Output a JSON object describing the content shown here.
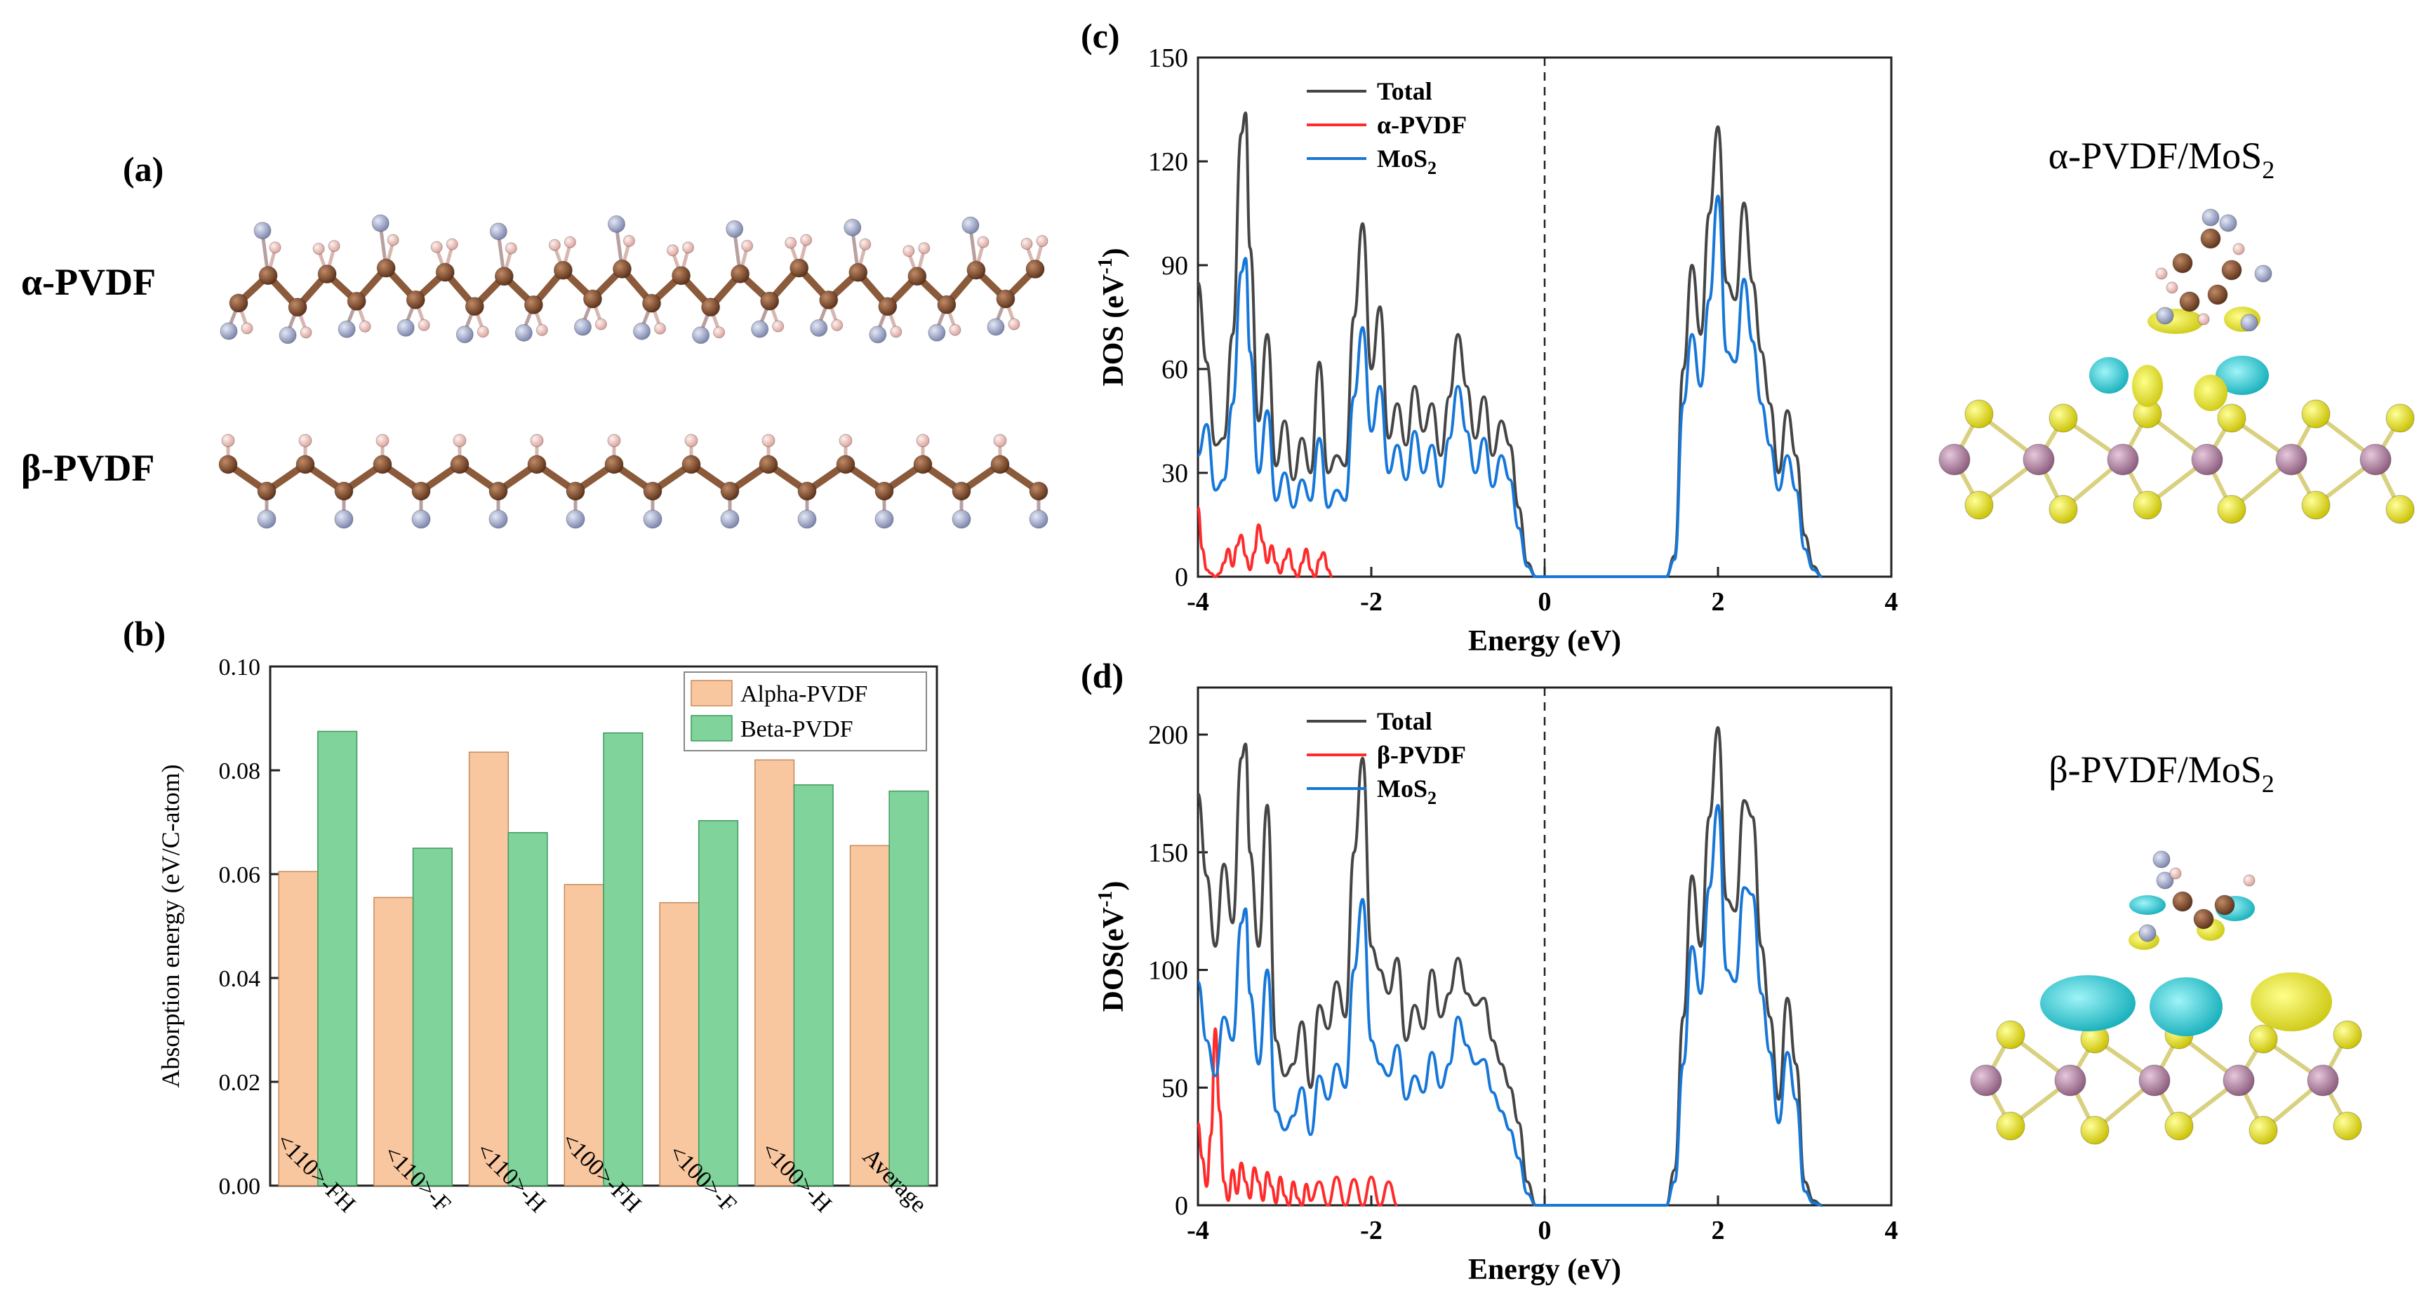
{
  "panel_labels": {
    "a": "(a)",
    "b": "(b)",
    "c": "(c)",
    "d": "(d)"
  },
  "molecule_labels": {
    "alpha": "α-PVDF",
    "beta": "β-PVDF"
  },
  "structure_labels": {
    "alpha_mos2": {
      "main": "α-PVDF/MoS",
      "sub": "2"
    },
    "beta_mos2": {
      "main": "β-PVDF/MoS",
      "sub": "2"
    }
  },
  "colors": {
    "carbon": "#7a4a2c",
    "hydrogen": "#f2c9c4",
    "fluorine": "#a6b0d2",
    "mo": "#b58aa6",
    "s": "#f2ea1a",
    "charge_cyan": "#17c7d2",
    "charge_yellow": "#e6e61c",
    "alpha_bar": "#f9c79f",
    "beta_bar": "#80d39b",
    "total": "#454545",
    "pvdf": "#ff2b2b",
    "mos2": "#1677d8"
  },
  "chart_data": [
    {
      "id": "b",
      "type": "bar",
      "title": "",
      "xlabel": "",
      "ylabel": "Absorption energy (eV/C-atom)",
      "categories": [
        "<110>-FH",
        "<110>-F",
        "<110>-H",
        "<100>-FH",
        "<100>-F",
        "<100>-H",
        "Average"
      ],
      "series": [
        {
          "name": "Alpha-PVDF",
          "values": [
            0.0605,
            0.0555,
            0.0835,
            0.058,
            0.0545,
            0.082,
            0.0655
          ]
        },
        {
          "name": "Beta-PVDF",
          "values": [
            0.0875,
            0.065,
            0.068,
            0.0872,
            0.0703,
            0.0772,
            0.076
          ]
        }
      ],
      "ylim": [
        0,
        0.1
      ],
      "yticks": [
        0.0,
        0.02,
        0.04,
        0.06,
        0.08,
        0.1
      ],
      "ytick_labels": [
        "0.00",
        "0.02",
        "0.04",
        "0.06",
        "0.08",
        "0.10"
      ],
      "legend": [
        "Alpha-PVDF",
        "Beta-PVDF"
      ],
      "legend_position": "top-right",
      "grid": false
    },
    {
      "id": "c",
      "type": "line",
      "title": "",
      "xlabel": "Energy (eV)",
      "ylabel": {
        "main": "DOS (eV",
        "sup": "-1",
        "close": ")"
      },
      "xlim": [
        -4,
        4
      ],
      "ylim": [
        0,
        150
      ],
      "xticks": [
        -4,
        -2,
        0,
        2,
        4
      ],
      "xtick_labels": [
        "-4",
        "-2",
        "0",
        "2",
        "4"
      ],
      "yticks": [
        0,
        30,
        60,
        90,
        120,
        150
      ],
      "ytick_labels": [
        "0",
        "30",
        "60",
        "90",
        "120",
        "150"
      ],
      "fermi_level": 0,
      "legend": [
        {
          "main": "Total",
          "sub": ""
        },
        {
          "main": "α-PVDF",
          "sub": ""
        },
        {
          "main": "MoS",
          "sub": "2"
        }
      ],
      "legend_position": "top-left",
      "series": [
        {
          "name": "Total",
          "x": [
            -4.0,
            -3.9,
            -3.8,
            -3.7,
            -3.6,
            -3.5,
            -3.45,
            -3.4,
            -3.3,
            -3.2,
            -3.1,
            -3.0,
            -2.9,
            -2.8,
            -2.7,
            -2.6,
            -2.5,
            -2.4,
            -2.3,
            -2.2,
            -2.1,
            -2.0,
            -1.9,
            -1.8,
            -1.7,
            -1.6,
            -1.5,
            -1.4,
            -1.3,
            -1.2,
            -1.1,
            -1.0,
            -0.9,
            -0.8,
            -0.7,
            -0.6,
            -0.5,
            -0.4,
            -0.3,
            -0.2,
            -0.1,
            0.0,
            1.4,
            1.5,
            1.6,
            1.7,
            1.8,
            1.9,
            2.0,
            2.1,
            2.2,
            2.3,
            2.4,
            2.5,
            2.6,
            2.7,
            2.8,
            2.9,
            3.0,
            3.1,
            3.2
          ],
          "y": [
            85,
            62,
            38,
            40,
            70,
            128,
            134,
            95,
            45,
            70,
            32,
            45,
            28,
            40,
            30,
            62,
            30,
            35,
            32,
            75,
            102,
            60,
            78,
            40,
            50,
            38,
            55,
            42,
            50,
            35,
            52,
            70,
            55,
            40,
            52,
            35,
            45,
            38,
            20,
            4,
            0,
            0,
            0,
            6,
            60,
            90,
            70,
            105,
            130,
            85,
            80,
            108,
            85,
            65,
            50,
            30,
            48,
            35,
            12,
            3,
            0
          ]
        },
        {
          "name": "α-PVDF",
          "x": [
            -4.0,
            -3.95,
            -3.9,
            -3.85,
            -3.8,
            -3.75,
            -3.7,
            -3.65,
            -3.6,
            -3.55,
            -3.5,
            -3.45,
            -3.4,
            -3.35,
            -3.3,
            -3.25,
            -3.2,
            -3.15,
            -3.1,
            -3.05,
            -3.0,
            -2.95,
            -2.9,
            -2.85,
            -2.8,
            -2.75,
            -2.7,
            -2.65,
            -2.6,
            -2.55,
            -2.5,
            -2.45
          ],
          "y": [
            20,
            8,
            2,
            1,
            0,
            1,
            4,
            8,
            3,
            9,
            12,
            6,
            2,
            7,
            15,
            10,
            4,
            9,
            4,
            1,
            5,
            8,
            2,
            0,
            4,
            8,
            2,
            0,
            5,
            7,
            2,
            0
          ]
        },
        {
          "name": "MoS2",
          "x": [
            -4.0,
            -3.9,
            -3.8,
            -3.7,
            -3.6,
            -3.5,
            -3.45,
            -3.4,
            -3.3,
            -3.2,
            -3.1,
            -3.0,
            -2.9,
            -2.8,
            -2.7,
            -2.6,
            -2.5,
            -2.4,
            -2.3,
            -2.2,
            -2.1,
            -2.0,
            -1.9,
            -1.8,
            -1.7,
            -1.6,
            -1.5,
            -1.4,
            -1.3,
            -1.2,
            -1.1,
            -1.0,
            -0.9,
            -0.8,
            -0.7,
            -0.6,
            -0.5,
            -0.4,
            -0.3,
            -0.2,
            -0.1,
            0.0,
            1.4,
            1.5,
            1.6,
            1.7,
            1.8,
            1.9,
            2.0,
            2.1,
            2.2,
            2.3,
            2.4,
            2.5,
            2.6,
            2.7,
            2.8,
            2.9,
            3.0,
            3.1,
            3.2
          ],
          "y": [
            35,
            44,
            25,
            28,
            50,
            88,
            92,
            65,
            30,
            48,
            22,
            30,
            20,
            28,
            22,
            40,
            20,
            25,
            22,
            52,
            72,
            42,
            55,
            30,
            38,
            28,
            42,
            30,
            38,
            26,
            40,
            55,
            42,
            30,
            40,
            26,
            35,
            28,
            14,
            3,
            0,
            0,
            0,
            5,
            50,
            70,
            55,
            80,
            110,
            65,
            62,
            86,
            68,
            50,
            38,
            25,
            35,
            25,
            8,
            2,
            0
          ]
        }
      ]
    },
    {
      "id": "d",
      "type": "line",
      "title": "",
      "xlabel": "Energy (eV)",
      "ylabel": {
        "main": "DOS(eV",
        "sup": "-1",
        "close": ")"
      },
      "xlim": [
        -4,
        4
      ],
      "ylim": [
        0,
        220
      ],
      "xticks": [
        -4,
        -2,
        0,
        2,
        4
      ],
      "xtick_labels": [
        "-4",
        "-2",
        "0",
        "2",
        "4"
      ],
      "yticks": [
        0,
        50,
        100,
        150,
        200
      ],
      "ytick_labels": [
        "0",
        "50",
        "100",
        "150",
        "200"
      ],
      "fermi_level": 0,
      "legend": [
        {
          "main": "Total",
          "sub": ""
        },
        {
          "main": "β-PVDF",
          "sub": ""
        },
        {
          "main": "MoS",
          "sub": "2"
        }
      ],
      "legend_position": "top-left",
      "series": [
        {
          "name": "Total",
          "x": [
            -4.0,
            -3.9,
            -3.8,
            -3.7,
            -3.6,
            -3.5,
            -3.45,
            -3.4,
            -3.3,
            -3.2,
            -3.1,
            -3.0,
            -2.9,
            -2.8,
            -2.7,
            -2.6,
            -2.5,
            -2.4,
            -2.3,
            -2.2,
            -2.1,
            -2.0,
            -1.9,
            -1.8,
            -1.7,
            -1.6,
            -1.5,
            -1.4,
            -1.3,
            -1.2,
            -1.1,
            -1.0,
            -0.9,
            -0.8,
            -0.7,
            -0.6,
            -0.5,
            -0.4,
            -0.3,
            -0.2,
            -0.1,
            0.0,
            1.4,
            1.5,
            1.6,
            1.7,
            1.8,
            1.9,
            2.0,
            2.1,
            2.2,
            2.3,
            2.4,
            2.5,
            2.6,
            2.7,
            2.8,
            2.9,
            3.0,
            3.1,
            3.2
          ],
          "y": [
            175,
            140,
            110,
            145,
            120,
            190,
            196,
            150,
            110,
            170,
            70,
            55,
            60,
            78,
            50,
            85,
            75,
            95,
            80,
            150,
            190,
            110,
            100,
            90,
            105,
            70,
            85,
            75,
            100,
            80,
            90,
            105,
            90,
            85,
            88,
            70,
            60,
            50,
            35,
            10,
            0,
            0,
            0,
            15,
            80,
            140,
            110,
            165,
            203,
            130,
            125,
            172,
            165,
            110,
            80,
            45,
            88,
            60,
            10,
            2,
            0
          ]
        },
        {
          "name": "β-PVDF",
          "x": [
            -4.0,
            -3.95,
            -3.9,
            -3.85,
            -3.8,
            -3.75,
            -3.7,
            -3.65,
            -3.6,
            -3.55,
            -3.5,
            -3.45,
            -3.4,
            -3.35,
            -3.3,
            -3.25,
            -3.2,
            -3.15,
            -3.1,
            -3.05,
            -3.0,
            -2.95,
            -2.9,
            -2.85,
            -2.8,
            -2.75,
            -2.7,
            -2.6,
            -2.5,
            -2.4,
            -2.3,
            -2.2,
            -2.1,
            -2.0,
            -1.9,
            -1.8,
            -1.7
          ],
          "y": [
            35,
            20,
            8,
            30,
            75,
            40,
            10,
            2,
            15,
            5,
            18,
            10,
            3,
            16,
            10,
            2,
            14,
            8,
            1,
            12,
            4,
            0,
            10,
            3,
            0,
            9,
            2,
            10,
            0,
            12,
            0,
            11,
            0,
            12,
            0,
            10,
            0
          ]
        },
        {
          "name": "MoS2",
          "x": [
            -4.0,
            -3.9,
            -3.8,
            -3.7,
            -3.6,
            -3.5,
            -3.45,
            -3.4,
            -3.3,
            -3.2,
            -3.1,
            -3.0,
            -2.9,
            -2.8,
            -2.7,
            -2.6,
            -2.5,
            -2.4,
            -2.3,
            -2.2,
            -2.1,
            -2.0,
            -1.9,
            -1.8,
            -1.7,
            -1.6,
            -1.5,
            -1.4,
            -1.3,
            -1.2,
            -1.1,
            -1.0,
            -0.9,
            -0.8,
            -0.7,
            -0.6,
            -0.5,
            -0.4,
            -0.3,
            -0.2,
            -0.1,
            0.0,
            1.4,
            1.5,
            1.6,
            1.7,
            1.8,
            1.9,
            2.0,
            2.1,
            2.2,
            2.3,
            2.4,
            2.5,
            2.6,
            2.7,
            2.8,
            2.9,
            3.0,
            3.1,
            3.2
          ],
          "y": [
            95,
            70,
            55,
            80,
            70,
            120,
            126,
            90,
            60,
            100,
            40,
            32,
            38,
            50,
            30,
            55,
            45,
            60,
            50,
            100,
            130,
            70,
            60,
            55,
            68,
            45,
            55,
            48,
            65,
            50,
            60,
            80,
            68,
            60,
            62,
            48,
            40,
            32,
            20,
            5,
            0,
            0,
            0,
            10,
            60,
            110,
            90,
            135,
            170,
            100,
            95,
            135,
            132,
            90,
            65,
            35,
            65,
            45,
            6,
            1,
            0
          ]
        }
      ]
    }
  ]
}
